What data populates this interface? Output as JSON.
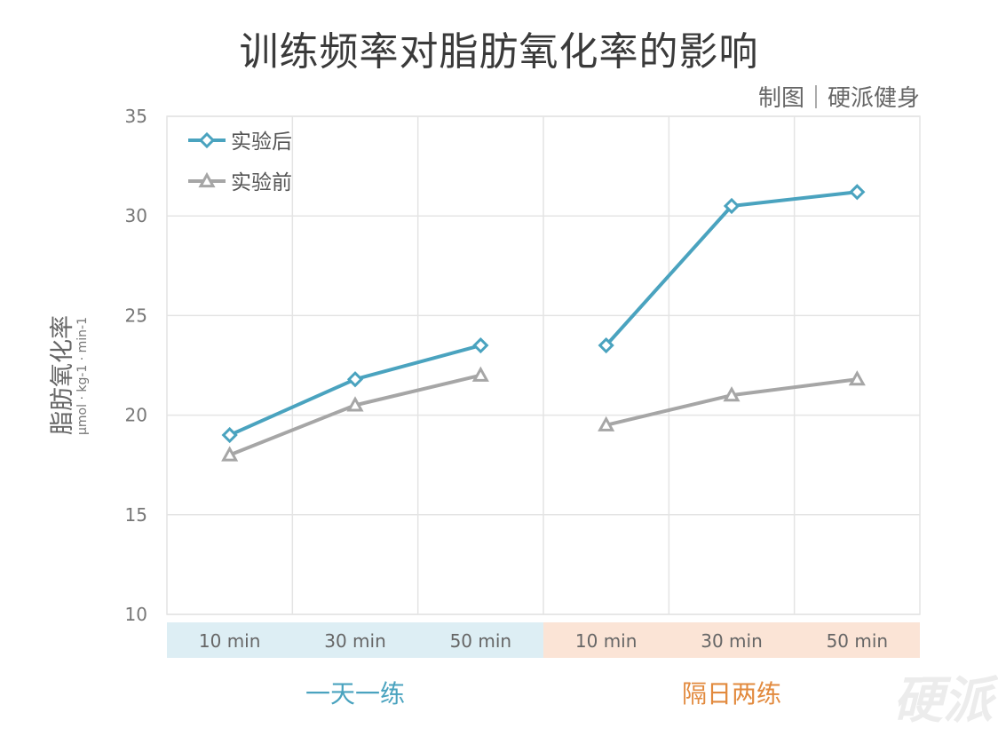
{
  "chart_data": {
    "type": "line",
    "title": "训练频率对脂肪氧化率的影响",
    "credit": "制图｜硬派健身",
    "ylabel": "脂肪氧化率",
    "yunit": "μmol · kg-1 · min-1",
    "ylim": [
      10,
      35
    ],
    "yticks": [
      10,
      15,
      20,
      25,
      30,
      35
    ],
    "grid": true,
    "legend_position": "top-left",
    "categories": [
      "10 min",
      "30 min",
      "50 min",
      "10 min",
      "30 min",
      "50 min"
    ],
    "groups": [
      {
        "label": "一天一练",
        "color": "#4aa3bf",
        "band_color": "#ddeef4",
        "indices": [
          0,
          1,
          2
        ]
      },
      {
        "label": "隔日两练",
        "color": "#e28a3e",
        "band_color": "#fbe4d6",
        "indices": [
          3,
          4,
          5
        ]
      }
    ],
    "series": [
      {
        "name": "实验后",
        "color": "#4aa3bf",
        "marker": "diamond",
        "values": [
          19.0,
          21.8,
          23.5,
          23.5,
          30.5,
          31.2
        ]
      },
      {
        "name": "实验前",
        "color": "#a6a6a6",
        "marker": "triangle",
        "values": [
          18.0,
          20.5,
          22.0,
          19.5,
          21.0,
          21.8
        ]
      }
    ]
  },
  "watermark": "硬派"
}
